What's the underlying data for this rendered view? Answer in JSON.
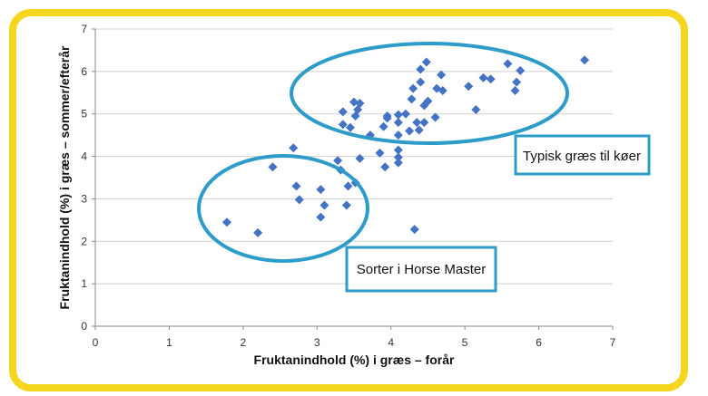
{
  "chart_data": {
    "type": "scatter",
    "xlabel": "Fruktanindhold (%) i græs – forår",
    "ylabel": "Fruktanindhold (%) i græs – sommer/efterår",
    "xlim": [
      0,
      7
    ],
    "ylim": [
      0,
      7
    ],
    "xticks": [
      0,
      1,
      2,
      3,
      4,
      5,
      6,
      7
    ],
    "yticks": [
      0,
      1,
      2,
      3,
      4,
      5,
      6,
      7
    ],
    "grid": "horizontal",
    "marker_color": "#4472C4",
    "points": [
      [
        1.78,
        2.45
      ],
      [
        2.2,
        2.2
      ],
      [
        2.4,
        3.75
      ],
      [
        2.68,
        4.2
      ],
      [
        2.72,
        3.3
      ],
      [
        2.76,
        2.98
      ],
      [
        3.05,
        3.22
      ],
      [
        3.05,
        2.57
      ],
      [
        3.1,
        2.85
      ],
      [
        3.28,
        3.9
      ],
      [
        3.32,
        3.68
      ],
      [
        3.35,
        5.05
      ],
      [
        3.35,
        4.75
      ],
      [
        3.4,
        2.85
      ],
      [
        3.42,
        3.3
      ],
      [
        3.45,
        4.68
      ],
      [
        3.5,
        5.28
      ],
      [
        3.52,
        4.95
      ],
      [
        3.52,
        3.38
      ],
      [
        3.55,
        5.1
      ],
      [
        3.58,
        5.25
      ],
      [
        3.58,
        3.95
      ],
      [
        3.72,
        4.5
      ],
      [
        3.85,
        4.08
      ],
      [
        3.9,
        4.7
      ],
      [
        3.92,
        3.75
      ],
      [
        3.95,
        4.9
      ],
      [
        3.95,
        4.95
      ],
      [
        4.1,
        4.98
      ],
      [
        4.1,
        4.8
      ],
      [
        4.1,
        4.5
      ],
      [
        4.1,
        4.15
      ],
      [
        4.1,
        3.98
      ],
      [
        4.1,
        3.85
      ],
      [
        4.2,
        5.0
      ],
      [
        4.25,
        4.6
      ],
      [
        4.28,
        5.35
      ],
      [
        4.3,
        5.6
      ],
      [
        4.32,
        2.28
      ],
      [
        4.35,
        4.8
      ],
      [
        4.38,
        4.62
      ],
      [
        4.4,
        6.05
      ],
      [
        4.4,
        5.75
      ],
      [
        4.45,
        5.2
      ],
      [
        4.45,
        4.8
      ],
      [
        4.48,
        6.22
      ],
      [
        4.5,
        5.3
      ],
      [
        4.6,
        4.92
      ],
      [
        4.62,
        5.6
      ],
      [
        4.68,
        5.92
      ],
      [
        4.7,
        5.55
      ],
      [
        5.05,
        5.65
      ],
      [
        5.15,
        5.1
      ],
      [
        5.25,
        5.85
      ],
      [
        5.35,
        5.82
      ],
      [
        5.58,
        6.18
      ],
      [
        5.68,
        5.55
      ],
      [
        5.7,
        5.75
      ],
      [
        5.75,
        6.02
      ],
      [
        6.62,
        6.27
      ]
    ],
    "annotations": {
      "high_group": {
        "label": "Typisk græs til køer"
      },
      "low_group": {
        "label": "Sorter i Horse Master"
      }
    },
    "ellipse_color": "#2E9CC9",
    "frame_color": "#F5D61E"
  }
}
